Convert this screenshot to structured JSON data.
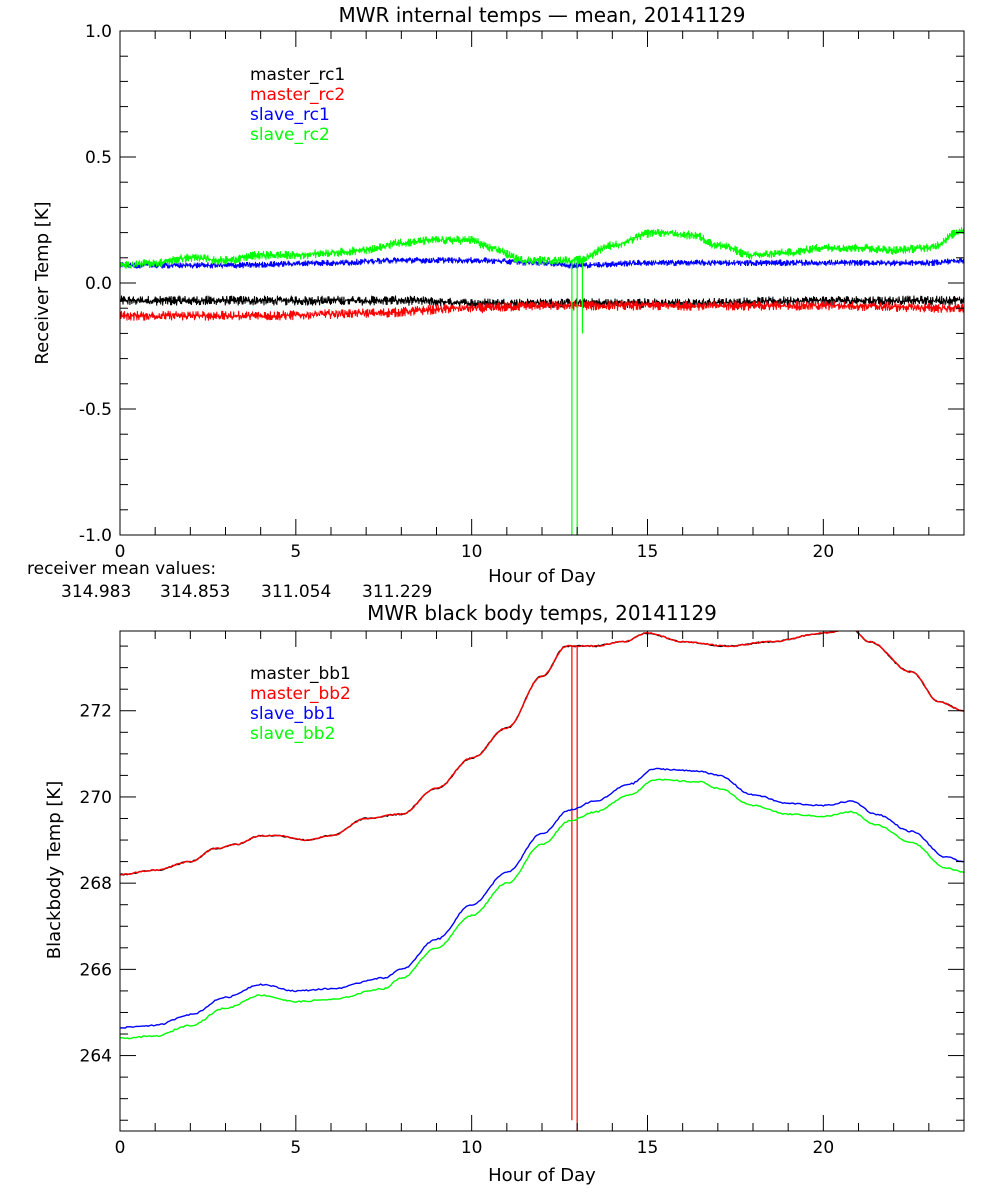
{
  "colors": {
    "black": "#000000",
    "red": "#ff0000",
    "blue": "#0000ff",
    "green": "#00ff00"
  },
  "receiver_mean": {
    "label": "receiver mean values:",
    "values": [
      "314.983",
      "314.853",
      "311.054",
      "311.229"
    ]
  },
  "chart_data": [
    {
      "type": "line",
      "title": "MWR internal temps — mean, 20141129",
      "xlabel": "Hour of Day",
      "ylabel": "Receiver Temp [K]",
      "xlim": [
        0,
        24
      ],
      "ylim": [
        -1.0,
        1.0
      ],
      "xticks": [
        0,
        5,
        10,
        15,
        20
      ],
      "yticks": [
        -1.0,
        -0.5,
        0.0,
        0.5,
        1.0
      ],
      "ytick_labels": [
        "-1.0",
        "-0.5",
        "0.0",
        "0.5",
        "1.0"
      ],
      "legend_position": "top-left",
      "series": [
        {
          "name": "master_rc1",
          "color": "#000000",
          "noise": 0.012,
          "band": 0.008,
          "x": [
            0,
            4,
            8,
            10,
            12,
            16,
            20,
            24
          ],
          "y": [
            -0.07,
            -0.07,
            -0.07,
            -0.08,
            -0.08,
            -0.08,
            -0.07,
            -0.07
          ]
        },
        {
          "name": "master_rc2",
          "color": "#ff0000",
          "noise": 0.012,
          "band": 0.008,
          "x": [
            0,
            4,
            7,
            10,
            12,
            16,
            20,
            24
          ],
          "y": [
            -0.13,
            -0.13,
            -0.12,
            -0.1,
            -0.09,
            -0.09,
            -0.09,
            -0.1
          ]
        },
        {
          "name": "slave_rc1",
          "color": "#0000ff",
          "noise": 0.008,
          "band": 0.005,
          "x": [
            0,
            3,
            6,
            8,
            10,
            12,
            13,
            15,
            17,
            20,
            23,
            24
          ],
          "y": [
            0.07,
            0.07,
            0.08,
            0.09,
            0.09,
            0.08,
            0.07,
            0.08,
            0.08,
            0.08,
            0.08,
            0.09
          ]
        },
        {
          "name": "slave_rc2",
          "color": "#00ff00",
          "noise": 0.01,
          "band": 0.008,
          "x": [
            0,
            1,
            2,
            3,
            4,
            5,
            6,
            7,
            8,
            9,
            10,
            10.5,
            11.5,
            12.5,
            13,
            14,
            15.2,
            16.3,
            17,
            18,
            19,
            20,
            21,
            22,
            23,
            24
          ],
          "y": [
            0.07,
            0.08,
            0.1,
            0.09,
            0.11,
            0.11,
            0.12,
            0.13,
            0.16,
            0.17,
            0.17,
            0.14,
            0.09,
            0.09,
            0.09,
            0.15,
            0.2,
            0.19,
            0.15,
            0.11,
            0.12,
            0.14,
            0.14,
            0.13,
            0.14,
            0.21
          ],
          "spikes": [
            {
              "x": 12.85,
              "y": -1.0
            },
            {
              "x": 13.0,
              "y": -1.0
            },
            {
              "x": 13.15,
              "y": -0.2
            }
          ]
        }
      ]
    },
    {
      "type": "line",
      "title": "MWR black body temps, 20141129",
      "xlabel": "Hour of Day",
      "ylabel": "Blackbody Temp [K]",
      "xlim": [
        0,
        24
      ],
      "ylim": [
        262.25,
        273.85
      ],
      "xticks": [
        0,
        5,
        10,
        15,
        20
      ],
      "yticks": [
        264,
        266,
        268,
        270,
        272
      ],
      "ytick_labels": [
        "264",
        "266",
        "268",
        "270",
        "272"
      ],
      "legend_position": "top-left",
      "series": [
        {
          "name": "master_bb1",
          "color": "#000000",
          "x": [
            0,
            1,
            2,
            2.7,
            3.3,
            4,
            4.5,
            5.3,
            6,
            7,
            8,
            9,
            10,
            11,
            12,
            12.7,
            13.5,
            14.3,
            15,
            16,
            17.3,
            18.5,
            20,
            20.8,
            21.3,
            22.5,
            23.3,
            24
          ],
          "y": [
            268.2,
            268.3,
            268.5,
            268.8,
            268.9,
            269.1,
            269.1,
            269.0,
            269.1,
            269.5,
            269.6,
            270.2,
            270.9,
            271.6,
            272.8,
            273.5,
            273.5,
            273.6,
            273.8,
            273.6,
            273.5,
            273.6,
            273.8,
            273.9,
            273.6,
            272.9,
            272.2,
            272.0
          ]
        },
        {
          "name": "master_bb2",
          "color": "#ff0000",
          "x": [
            0,
            1,
            2,
            2.7,
            3.3,
            4,
            4.5,
            5.3,
            6,
            7,
            8,
            9,
            10,
            11,
            12,
            12.7,
            13.5,
            14.3,
            15,
            16,
            17.3,
            18.5,
            20,
            20.8,
            21.3,
            22.5,
            23.3,
            24
          ],
          "y": [
            268.2,
            268.3,
            268.5,
            268.8,
            268.9,
            269.1,
            269.1,
            269.0,
            269.1,
            269.5,
            269.6,
            270.2,
            270.9,
            271.6,
            272.8,
            273.5,
            273.5,
            273.6,
            273.8,
            273.6,
            273.5,
            273.6,
            273.8,
            273.9,
            273.6,
            272.9,
            272.2,
            272.0
          ],
          "spikes": [
            {
              "x": 12.85,
              "y": 262.5
            },
            {
              "x": 13.0,
              "y": 262.25
            }
          ]
        },
        {
          "name": "slave_bb1",
          "color": "#0000ff",
          "x": [
            0,
            1,
            2,
            3,
            4,
            5,
            6,
            7.5,
            8,
            9,
            10,
            11,
            12,
            12.8,
            13.5,
            14.5,
            15.2,
            16.5,
            17,
            18,
            19,
            20,
            20.8,
            21.5,
            22.5,
            23.5,
            24
          ],
          "y": [
            264.65,
            264.7,
            264.95,
            265.35,
            265.65,
            265.5,
            265.55,
            265.8,
            266.0,
            266.7,
            267.5,
            268.25,
            269.15,
            269.7,
            269.9,
            270.3,
            270.65,
            270.6,
            270.5,
            270.05,
            269.85,
            269.8,
            269.9,
            269.6,
            269.2,
            268.6,
            268.5
          ]
        },
        {
          "name": "slave_bb2",
          "color": "#00ff00",
          "x": [
            0,
            1,
            2,
            3,
            4,
            5,
            6,
            7.5,
            8,
            9,
            10,
            11,
            12,
            12.8,
            13.5,
            14.5,
            15.2,
            16.5,
            17,
            18,
            19,
            20,
            20.8,
            21.5,
            22.5,
            23.5,
            24
          ],
          "y": [
            264.4,
            264.45,
            264.7,
            265.1,
            265.4,
            265.25,
            265.3,
            265.55,
            265.8,
            266.5,
            267.25,
            268.0,
            268.9,
            269.45,
            269.65,
            270.05,
            270.4,
            270.35,
            270.2,
            269.8,
            269.6,
            269.55,
            269.65,
            269.35,
            268.95,
            268.35,
            268.25
          ]
        }
      ]
    }
  ]
}
